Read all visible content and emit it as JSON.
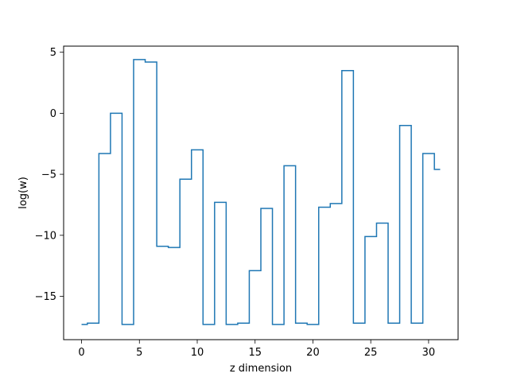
{
  "chart_data": {
    "type": "line",
    "step": "mid",
    "title": "",
    "xlabel": "z dimension",
    "ylabel": "log(w)",
    "xlim": [
      -1.55,
      32.55
    ],
    "ylim": [
      -18.55,
      5.5
    ],
    "xticks": [
      0,
      5,
      10,
      15,
      20,
      25,
      30
    ],
    "yticks": [
      -15,
      -10,
      -5,
      0,
      5
    ],
    "grid": false,
    "legend": "none",
    "series": [
      {
        "color": "#1f77b4",
        "x": [
          0,
          1,
          2,
          3,
          4,
          5,
          6,
          7,
          8,
          9,
          10,
          11,
          12,
          13,
          14,
          15,
          16,
          17,
          18,
          19,
          20,
          21,
          22,
          23,
          24,
          25,
          26,
          27,
          28,
          29,
          30,
          31
        ],
        "values": [
          -17.3,
          -17.2,
          -3.3,
          0.0,
          -17.3,
          4.4,
          4.2,
          -10.9,
          -11.0,
          -5.4,
          -3.0,
          -17.3,
          -7.3,
          -17.3,
          -17.2,
          -12.9,
          -7.8,
          -17.3,
          -4.3,
          -17.2,
          -17.3,
          -7.7,
          -7.4,
          3.5,
          -17.2,
          -10.1,
          -9.0,
          -17.2,
          -1.0,
          -17.2,
          -3.3,
          -4.6
        ]
      }
    ]
  }
}
